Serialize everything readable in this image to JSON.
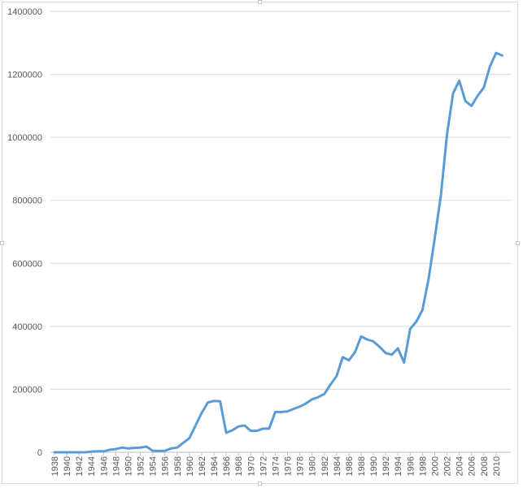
{
  "chart_data": {
    "type": "line",
    "title": "",
    "xlabel": "",
    "ylabel": "",
    "ylim": [
      0,
      1400000
    ],
    "yticks": [
      0,
      200000,
      400000,
      600000,
      800000,
      1000000,
      1200000,
      1400000
    ],
    "ytick_labels": [
      "0",
      "200000",
      "400000",
      "600000",
      "800000",
      "1000000",
      "1200000",
      "1400000"
    ],
    "xlim": [
      1938,
      2011
    ],
    "xtick_labels": [
      "1938",
      "1940",
      "1942",
      "1944",
      "1946",
      "1948",
      "1950",
      "1952",
      "1954",
      "1956",
      "1958",
      "1960",
      "1962",
      "1964",
      "1966",
      "1968",
      "1970",
      "1972",
      "1974",
      "1976",
      "1978",
      "1980",
      "1982",
      "1984",
      "1986",
      "1988",
      "1990",
      "1992",
      "1994",
      "1996",
      "1998",
      "2000",
      "2002",
      "2004",
      "2006",
      "2008",
      "2010"
    ],
    "grid": "horizontal",
    "legend": "none",
    "line_color": "#5b9bd5",
    "series": [
      {
        "x": [
          1938,
          1939,
          1940,
          1941,
          1942,
          1943,
          1944,
          1945,
          1946,
          1947,
          1948,
          1949,
          1950,
          1951,
          1952,
          1953,
          1954,
          1955,
          1956,
          1957,
          1958,
          1959,
          1960,
          1961,
          1962,
          1963,
          1964,
          1965,
          1966,
          1967,
          1968,
          1969,
          1970,
          1971,
          1972,
          1973,
          1974,
          1975,
          1976,
          1977,
          1978,
          1979,
          1980,
          1981,
          1982,
          1983,
          1984,
          1985,
          1986,
          1987,
          1988,
          1989,
          1990,
          1991,
          1992,
          1993,
          1994,
          1995,
          1996,
          1997,
          1998,
          1999,
          2000,
          2001,
          2002,
          2003,
          2004,
          2005,
          2006,
          2007,
          2008,
          2009,
          2010,
          2011
        ],
        "values": [
          0,
          0,
          0,
          0,
          0,
          0,
          2000,
          3000,
          3000,
          8000,
          10000,
          15000,
          12000,
          14000,
          15000,
          18000,
          5000,
          4000,
          5000,
          12000,
          15000,
          30000,
          45000,
          85000,
          125000,
          158000,
          163000,
          162000,
          62000,
          70000,
          82000,
          85000,
          68000,
          68000,
          75000,
          75000,
          128000,
          128000,
          130000,
          138000,
          145000,
          155000,
          168000,
          175000,
          185000,
          215000,
          242000,
          302000,
          292000,
          318000,
          368000,
          358000,
          352000,
          335000,
          315000,
          310000,
          330000,
          285000,
          392000,
          415000,
          452000,
          550000,
          680000,
          815000,
          1010000,
          1140000,
          1180000,
          1115000,
          1100000,
          1132000,
          1158000,
          1225000,
          1268000,
          1260000
        ]
      }
    ]
  }
}
